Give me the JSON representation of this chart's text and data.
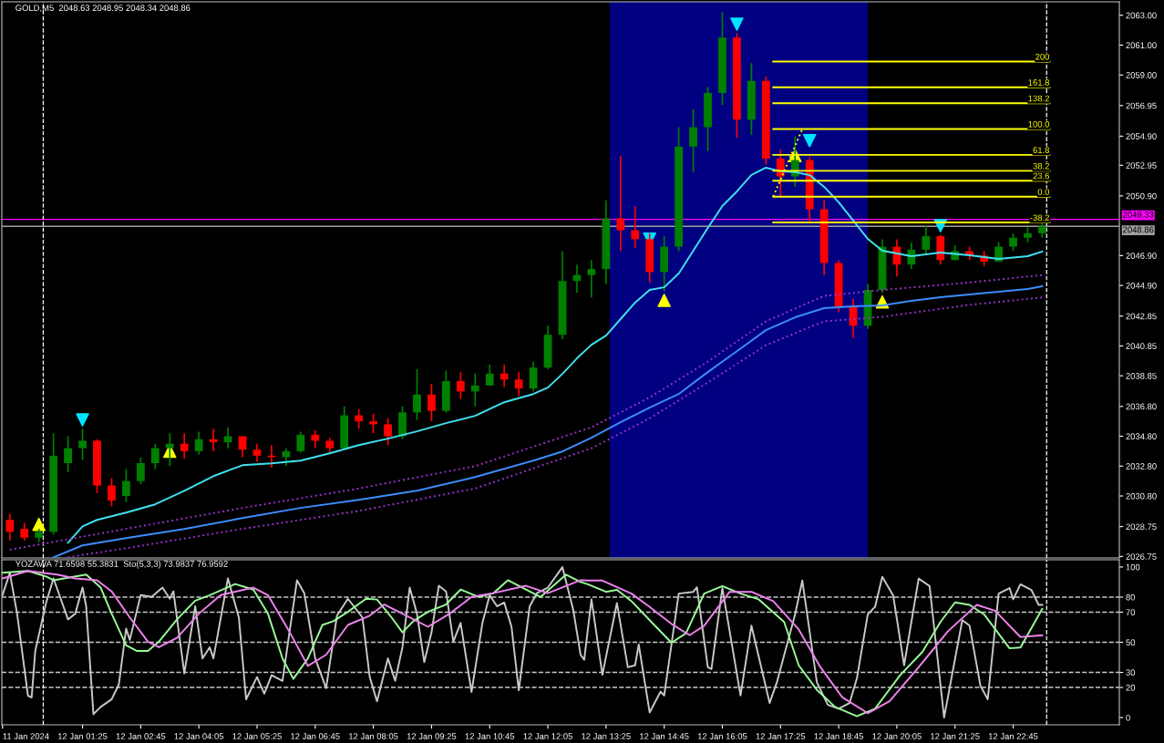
{
  "chart_data": [
    {
      "type": "candlestick",
      "title": "GOLD,M5  2048.63 2048.95 2048.34 2048.86",
      "x": [
        "2024-01-11T23:45",
        "2024-01-12T00:05",
        "2024-01-12T00:25",
        "2024-01-12T00:45",
        "2024-01-12T01:05",
        "2024-01-12T01:25",
        "2024-01-12T01:45",
        "2024-01-12T02:05",
        "2024-01-12T02:25",
        "2024-01-12T02:45",
        "2024-01-12T03:05",
        "2024-01-12T03:25",
        "2024-01-12T03:45",
        "2024-01-12T04:05",
        "2024-01-12T04:25",
        "2024-01-12T04:45",
        "2024-01-12T05:05",
        "2024-01-12T05:25",
        "2024-01-12T05:45",
        "2024-01-12T06:05",
        "2024-01-12T06:25",
        "2024-01-12T06:45",
        "2024-01-12T07:05",
        "2024-01-12T07:25",
        "2024-01-12T07:45",
        "2024-01-12T08:05",
        "2024-01-12T08:25",
        "2024-01-12T08:45",
        "2024-01-12T09:05",
        "2024-01-12T09:25",
        "2024-01-12T09:45",
        "2024-01-12T10:05",
        "2024-01-12T10:25",
        "2024-01-12T10:45",
        "2024-01-12T11:05",
        "2024-01-12T11:25",
        "2024-01-12T11:45",
        "2024-01-12T12:05",
        "2024-01-12T12:25",
        "2024-01-12T12:45",
        "2024-01-12T13:05",
        "2024-01-12T13:25",
        "2024-01-12T13:45",
        "2024-01-12T14:05",
        "2024-01-12T14:25",
        "2024-01-12T14:45",
        "2024-01-12T15:05",
        "2024-01-12T15:25",
        "2024-01-12T15:45",
        "2024-01-12T16:05",
        "2024-01-12T16:25",
        "2024-01-12T16:45",
        "2024-01-12T17:05",
        "2024-01-12T17:25",
        "2024-01-12T17:45",
        "2024-01-12T18:05",
        "2024-01-12T18:25",
        "2024-01-12T18:45",
        "2024-01-12T19:05",
        "2024-01-12T19:25",
        "2024-01-12T19:45",
        "2024-01-12T20:05",
        "2024-01-12T20:25",
        "2024-01-12T20:45",
        "2024-01-12T21:05",
        "2024-01-12T21:25",
        "2024-01-12T21:45",
        "2024-01-12T22:05",
        "2024-01-12T22:25",
        "2024-01-12T22:45",
        "2024-01-12T23:05",
        "2024-01-12T23:25"
      ],
      "ohlc": [
        [
          2029.2,
          2029.6,
          2027.8,
          2028.4
        ],
        [
          2028.6,
          2029.0,
          2027.8,
          2028.0
        ],
        [
          2028.0,
          2028.6,
          2027.7,
          2028.4
        ],
        [
          2028.4,
          2035.0,
          2028.2,
          2033.5
        ],
        [
          2033.0,
          2034.8,
          2032.4,
          2034.0
        ],
        [
          2034.0,
          2035.3,
          2033.2,
          2034.5
        ],
        [
          2034.5,
          2034.6,
          2031.0,
          2031.5
        ],
        [
          2031.5,
          2032.0,
          2030.1,
          2030.5
        ],
        [
          2030.8,
          2032.6,
          2030.4,
          2031.8
        ],
        [
          2031.8,
          2033.4,
          2031.6,
          2033.0
        ],
        [
          2033.0,
          2034.3,
          2032.6,
          2034.0
        ],
        [
          2034.0,
          2035.0,
          2032.8,
          2034.3
        ],
        [
          2034.3,
          2035.0,
          2033.3,
          2033.8
        ],
        [
          2033.8,
          2035.1,
          2033.6,
          2034.6
        ],
        [
          2034.6,
          2035.3,
          2033.8,
          2034.4
        ],
        [
          2034.4,
          2035.4,
          2034.0,
          2034.8
        ],
        [
          2034.8,
          2034.8,
          2033.4,
          2033.9
        ],
        [
          2033.9,
          2034.3,
          2033.1,
          2033.5
        ],
        [
          2033.5,
          2034.2,
          2032.7,
          2033.4
        ],
        [
          2033.4,
          2034.0,
          2032.8,
          2033.8
        ],
        [
          2033.8,
          2035.1,
          2033.7,
          2034.9
        ],
        [
          2034.9,
          2035.2,
          2034.0,
          2034.5
        ],
        [
          2034.5,
          2034.7,
          2033.6,
          2034.0
        ],
        [
          2034.0,
          2036.8,
          2033.9,
          2036.2
        ],
        [
          2036.2,
          2036.6,
          2035.3,
          2035.8
        ],
        [
          2035.8,
          2036.3,
          2035.0,
          2035.6
        ],
        [
          2035.6,
          2036.0,
          2034.2,
          2034.8
        ],
        [
          2034.8,
          2036.8,
          2034.6,
          2036.4
        ],
        [
          2036.4,
          2039.3,
          2035.9,
          2037.6
        ],
        [
          2037.6,
          2038.3,
          2035.8,
          2036.5
        ],
        [
          2036.5,
          2039.2,
          2036.4,
          2038.5
        ],
        [
          2038.5,
          2039.1,
          2037.3,
          2037.8
        ],
        [
          2037.8,
          2039.0,
          2036.8,
          2038.2
        ],
        [
          2038.2,
          2039.6,
          2038.2,
          2039.0
        ],
        [
          2039.0,
          2039.6,
          2038.1,
          2038.6
        ],
        [
          2038.6,
          2039.1,
          2037.5,
          2038.0
        ],
        [
          2038.0,
          2039.8,
          2037.8,
          2039.4
        ],
        [
          2039.4,
          2042.2,
          2039.3,
          2041.6
        ],
        [
          2041.6,
          2047.2,
          2041.3,
          2045.2
        ],
        [
          2045.2,
          2046.3,
          2044.4,
          2045.6
        ],
        [
          2045.6,
          2046.6,
          2044.1,
          2046.0
        ],
        [
          2046.0,
          2050.6,
          2045.0,
          2049.4
        ],
        [
          2049.4,
          2053.6,
          2047.2,
          2048.6
        ],
        [
          2048.6,
          2050.2,
          2047.4,
          2048.0
        ],
        [
          2048.0,
          2048.4,
          2045.1,
          2045.8
        ],
        [
          2045.8,
          2048.2,
          2044.5,
          2047.5
        ],
        [
          2047.5,
          2055.5,
          2047.2,
          2054.2
        ],
        [
          2054.2,
          2056.7,
          2052.5,
          2055.5
        ],
        [
          2055.5,
          2058.2,
          2053.9,
          2057.8
        ],
        [
          2057.8,
          2063.2,
          2057.0,
          2061.5
        ],
        [
          2061.5,
          2061.8,
          2054.8,
          2056.0
        ],
        [
          2056.0,
          2059.8,
          2055.0,
          2058.6
        ],
        [
          2058.6,
          2058.9,
          2053.0,
          2053.4
        ],
        [
          2053.4,
          2054.0,
          2050.8,
          2052.2
        ],
        [
          2052.2,
          2054.9,
          2051.5,
          2053.3
        ],
        [
          2053.3,
          2053.5,
          2049.2,
          2050.0
        ],
        [
          2050.0,
          2050.6,
          2045.6,
          2046.4
        ],
        [
          2046.4,
          2046.6,
          2043.1,
          2043.5
        ],
        [
          2043.5,
          2044.0,
          2041.4,
          2042.2
        ],
        [
          2042.2,
          2045.0,
          2042.0,
          2044.6
        ],
        [
          2044.6,
          2048.0,
          2044.4,
          2047.5
        ],
        [
          2047.5,
          2048.0,
          2045.5,
          2046.3
        ],
        [
          2046.3,
          2047.8,
          2046.0,
          2047.3
        ],
        [
          2047.3,
          2048.9,
          2047.0,
          2048.2
        ],
        [
          2048.2,
          2048.3,
          2046.3,
          2046.6
        ],
        [
          2046.6,
          2047.6,
          2046.6,
          2047.2
        ],
        [
          2047.2,
          2047.5,
          2046.6,
          2046.9
        ],
        [
          2046.9,
          2047.2,
          2046.2,
          2046.5
        ],
        [
          2046.5,
          2047.8,
          2046.5,
          2047.5
        ],
        [
          2047.5,
          2048.4,
          2047.2,
          2048.1
        ],
        [
          2048.1,
          2048.8,
          2047.8,
          2048.4
        ],
        [
          2048.4,
          2049.2,
          2048.1,
          2048.86
        ]
      ],
      "series": [
        {
          "type": "line",
          "color": "#40e0f0",
          "x": [
            "2024-01-12T01:05",
            "2024-01-12T01:25",
            "2024-01-12T01:45",
            "2024-01-12T02:25",
            "2024-01-12T03:05",
            "2024-01-12T03:45",
            "2024-01-12T04:25",
            "2024-01-12T05:05",
            "2024-01-12T05:45",
            "2024-01-12T06:25",
            "2024-01-12T07:05",
            "2024-01-12T07:45",
            "2024-01-12T08:25",
            "2024-01-12T09:05",
            "2024-01-12T09:45",
            "2024-01-12T10:25",
            "2024-01-12T11:05",
            "2024-01-12T11:45",
            "2024-01-12T12:05",
            "2024-01-12T12:25",
            "2024-01-12T12:45",
            "2024-01-12T13:05",
            "2024-01-12T13:25",
            "2024-01-12T13:45",
            "2024-01-12T14:05",
            "2024-01-12T14:25",
            "2024-01-12T14:45",
            "2024-01-12T15:05",
            "2024-01-12T15:25",
            "2024-01-12T15:45",
            "2024-01-12T16:05",
            "2024-01-12T16:25",
            "2024-01-12T16:45",
            "2024-01-12T17:05",
            "2024-01-12T17:25",
            "2024-01-12T17:45",
            "2024-01-12T18:05",
            "2024-01-12T18:25",
            "2024-01-12T18:45",
            "2024-01-12T19:05",
            "2024-01-12T19:25",
            "2024-01-12T19:45",
            "2024-01-12T20:25",
            "2024-01-12T21:05",
            "2024-01-12T21:45",
            "2024-01-12T22:25",
            "2024-01-12T23:05",
            "2024-01-12T23:25"
          ],
          "values": [
            2027.67,
            2028.77,
            2029.2,
            2029.69,
            2030.24,
            2031.15,
            2032.13,
            2032.86,
            2032.99,
            2033.17,
            2033.66,
            2034.21,
            2034.64,
            2035.13,
            2035.68,
            2036.17,
            2037.08,
            2037.63,
            2038.06,
            2038.98,
            2040.02,
            2040.93,
            2041.54,
            2042.65,
            2043.75,
            2044.6,
            2044.78,
            2045.7,
            2047.23,
            2048.76,
            2050.22,
            2051.2,
            2052.3,
            2052.79,
            2052.55,
            2052.49,
            2052.3,
            2051.51,
            2050.47,
            2049.25,
            2048.02,
            2047.23,
            2046.86,
            2047.11,
            2046.92,
            2046.68,
            2046.86,
            2047.17
          ]
        },
        {
          "type": "line",
          "color": "#3c8cff",
          "x": [
            "2024-01-12T00:45",
            "2024-01-12T01:25",
            "2024-01-12T02:25",
            "2024-01-12T03:45",
            "2024-01-12T05:05",
            "2024-01-12T06:25",
            "2024-01-12T07:45",
            "2024-01-12T09:05",
            "2024-01-12T10:25",
            "2024-01-12T11:45",
            "2024-01-12T12:25",
            "2024-01-12T13:05",
            "2024-01-12T13:45",
            "2024-01-12T14:25",
            "2024-01-12T15:05",
            "2024-01-12T15:45",
            "2024-01-12T16:25",
            "2024-01-12T17:05",
            "2024-01-12T17:45",
            "2024-01-12T18:25",
            "2024-01-12T19:05",
            "2024-01-12T19:45",
            "2024-01-12T20:25",
            "2024-01-12T21:05",
            "2024-01-12T21:45",
            "2024-01-12T22:25",
            "2024-01-12T23:05",
            "2024-01-12T23:25"
          ],
          "values": [
            2026.69,
            2027.49,
            2027.98,
            2028.59,
            2029.32,
            2030.0,
            2030.54,
            2031.15,
            2032.07,
            2033.17,
            2033.78,
            2034.7,
            2035.74,
            2036.72,
            2037.63,
            2039.1,
            2040.5,
            2041.91,
            2042.77,
            2043.38,
            2043.5,
            2043.56,
            2043.87,
            2044.11,
            2044.3,
            2044.48,
            2044.66,
            2044.85
          ]
        },
        {
          "type": "line",
          "color": "#9932cc",
          "line_style": "dotted",
          "x": [
            "2024-01-11T23:45",
            "2024-01-12T02:25",
            "2024-01-12T05:05",
            "2024-01-12T07:45",
            "2024-01-12T10:25",
            "2024-01-12T13:05",
            "2024-01-12T14:25",
            "2024-01-12T15:45",
            "2024-01-12T17:05",
            "2024-01-12T18:25",
            "2024-01-12T19:45",
            "2024-01-12T21:45",
            "2024-01-12T23:25"
          ],
          "values": [
            2027.2,
            2028.6,
            2030.0,
            2031.3,
            2032.8,
            2035.4,
            2037.4,
            2039.8,
            2042.5,
            2044.2,
            2044.6,
            2045.1,
            2045.6
          ]
        },
        {
          "type": "line",
          "color": "#9932cc",
          "line_style": "dotted",
          "x": [
            "2024-01-12T01:05",
            "2024-01-12T02:25",
            "2024-01-12T05:05",
            "2024-01-12T07:45",
            "2024-01-12T10:25",
            "2024-01-12T13:05",
            "2024-01-12T14:25",
            "2024-01-12T15:45",
            "2024-01-12T17:05",
            "2024-01-12T18:25",
            "2024-01-12T19:45",
            "2024-01-12T21:45",
            "2024-01-12T23:25"
          ],
          "values": [
            2026.7,
            2027.3,
            2028.6,
            2029.8,
            2031.3,
            2034.0,
            2036.0,
            2038.4,
            2040.9,
            2042.5,
            2042.8,
            2043.6,
            2044.1
          ]
        },
        {
          "type": "line",
          "color": "#ffff00",
          "x": [
            "2024-01-12T17:15",
            "2024-01-12T23:35"
          ],
          "values": [
            2059.9,
            2059.9
          ]
        },
        {
          "type": "line",
          "color": "#ffff00",
          "x": [
            "2024-01-12T17:15",
            "2024-01-12T23:35"
          ],
          "values": [
            2058.18,
            2058.18
          ]
        },
        {
          "type": "line",
          "color": "#ffff00",
          "x": [
            "2024-01-12T17:15",
            "2024-01-12T23:35"
          ],
          "values": [
            2057.11,
            2057.11
          ]
        },
        {
          "type": "line",
          "color": "#ffff00",
          "x": [
            "2024-01-12T17:15",
            "2024-01-12T23:35"
          ],
          "values": [
            2055.38,
            2055.38
          ]
        },
        {
          "type": "line",
          "color": "#ffff00",
          "x": [
            "2024-01-12T17:15",
            "2024-01-12T23:35"
          ],
          "values": [
            2053.65,
            2053.65
          ]
        },
        {
          "type": "line",
          "color": "#ffff00",
          "x": [
            "2024-01-12T17:15",
            "2024-01-12T23:35"
          ],
          "values": [
            2052.58,
            2052.58
          ]
        },
        {
          "type": "line",
          "color": "#ffff00",
          "x": [
            "2024-01-12T17:15",
            "2024-01-12T23:35"
          ],
          "values": [
            2051.92,
            2051.92
          ]
        },
        {
          "type": "line",
          "color": "#ffff00",
          "x": [
            "2024-01-12T17:15",
            "2024-01-12T23:35"
          ],
          "values": [
            2050.85,
            2050.85
          ]
        },
        {
          "type": "line",
          "color": "#ffff00",
          "x": [
            "2024-01-12T17:15",
            "2024-01-12T23:35"
          ],
          "values": [
            2049.12,
            2049.12
          ]
        },
        {
          "type": "line",
          "color": "#ffff00",
          "line_style": "dotted",
          "x": [
            "2024-01-12T17:15",
            "2024-01-12T17:55"
          ],
          "values": [
            2050.85,
            2055.38
          ]
        },
        {
          "type": "scatter",
          "color": "#ffff00",
          "marker": "triangle",
          "x": [
            "2024-01-12T00:25",
            "2024-01-12T03:25",
            "2024-01-12T14:45",
            "2024-01-12T17:45",
            "2024-01-12T19:45"
          ],
          "values": [
            2028.9,
            2033.8,
            2043.9,
            2053.6,
            2043.8
          ]
        },
        {
          "type": "scatter",
          "color": "#00e5ff",
          "marker": "triangle_down",
          "x": [
            "2024-01-12T01:25",
            "2024-01-12T14:25",
            "2024-01-12T16:25",
            "2024-01-12T18:05",
            "2024-01-12T21:05"
          ],
          "values": [
            2035.9,
            2048.0,
            2062.4,
            2054.6,
            2048.9
          ]
        }
      ],
      "annotations": [
        {
          "text": "200",
          "x": "2024-01-12T23:35",
          "y": 2059.9
        },
        {
          "text": "161.8",
          "x": "2024-01-12T23:35",
          "y": 2058.18
        },
        {
          "text": "138.2",
          "x": "2024-01-12T23:35",
          "y": 2057.11
        },
        {
          "text": "100.0",
          "x": "2024-01-12T23:35",
          "y": 2055.38
        },
        {
          "text": "61.8",
          "x": "2024-01-12T23:35",
          "y": 2053.65
        },
        {
          "text": "38.2",
          "x": "2024-01-12T23:35",
          "y": 2052.58
        },
        {
          "text": "23.6",
          "x": "2024-01-12T23:35",
          "y": 2051.92
        },
        {
          "text": "0.0",
          "x": "2024-01-12T23:35",
          "y": 2050.85
        },
        {
          "text": "-38.2",
          "x": "2024-01-12T23:35",
          "y": 2049.12
        }
      ],
      "ref_lines": [
        {
          "axis": "y",
          "value": 2049.33,
          "label": "2049.33",
          "color": "#ff00ff"
        },
        {
          "axis": "y",
          "value": 2048.86,
          "label": "2048.86",
          "color": "#a0a0a0"
        },
        {
          "axis": "x",
          "value": "2024-01-12T00:31",
          "color": "#ffffff",
          "line_style": "dashed"
        },
        {
          "axis": "x",
          "value": "2024-01-12T23:31",
          "color": "#ffffff",
          "line_style": "dashed"
        }
      ],
      "bands": [
        {
          "axis": "x",
          "from": "2024-01-12T13:30",
          "to": "2024-01-12T19:25",
          "color": "#000080"
        }
      ],
      "xlim": [
        "2024-01-11T23:34",
        "2024-01-13T01:11"
      ],
      "ylim": [
        2026.65,
        2063.9
      ],
      "yticks": [
        2026.75,
        2028.75,
        {
          "value": 2030.8,
          "label": "2030.80"
        },
        {
          "value": 2032.8,
          "label": "2032.80"
        },
        {
          "value": 2034.8,
          "label": "2034.80"
        },
        {
          "value": 2036.8,
          "label": "2036.80"
        },
        2038.85,
        2040.85,
        2042.85,
        {
          "value": 2044.9,
          "label": "2044.90"
        },
        {
          "value": 2046.9,
          "label": "2046.90"
        },
        {
          "value": 2050.9,
          "label": "2050.90"
        },
        2052.95,
        {
          "value": 2054.9,
          "label": "2054.90"
        },
        2056.95,
        {
          "value": 2059.0,
          "label": "2059.00"
        },
        {
          "value": 2061.0,
          "label": "2061.00"
        },
        {
          "value": 2063.0,
          "label": "2063.00"
        }
      ],
      "tick_labels": "y"
    },
    {
      "type": "line",
      "title": "YOZAWA 71.6598 55.3831  Sto(5,3,3) 73.9837 76.9592",
      "series": [
        {
          "color": "#c8c8c8",
          "x": [
            "2024-01-11T23:35",
            "2024-01-11T23:45",
            "2024-01-11T23:55",
            "2024-01-12T00:10",
            "2024-01-12T00:15",
            "2024-01-12T00:20",
            "2024-01-12T00:35",
            "2024-01-12T00:45",
            "2024-01-12T00:55",
            "2024-01-12T01:05",
            "2024-01-12T01:15",
            "2024-01-12T01:25",
            "2024-01-12T01:30",
            "2024-01-12T01:40",
            "2024-01-12T01:50",
            "2024-01-12T02:05",
            "2024-01-12T02:15",
            "2024-01-12T02:25",
            "2024-01-12T02:30",
            "2024-01-12T02:45",
            "2024-01-12T03:00",
            "2024-01-12T03:15",
            "2024-01-12T03:25",
            "2024-01-12T03:30",
            "2024-01-12T03:45",
            "2024-01-12T04:00",
            "2024-01-12T04:10",
            "2024-01-12T04:20",
            "2024-01-12T04:25",
            "2024-01-12T04:45",
            "2024-01-12T05:00",
            "2024-01-12T05:10",
            "2024-01-12T05:25",
            "2024-01-12T05:35",
            "2024-01-12T05:45",
            "2024-01-12T06:00",
            "2024-01-12T06:20",
            "2024-01-12T06:30",
            "2024-01-12T06:45",
            "2024-01-12T07:00",
            "2024-01-12T07:15",
            "2024-01-12T07:30",
            "2024-01-12T07:40",
            "2024-01-12T07:50",
            "2024-01-12T08:00",
            "2024-01-12T08:10",
            "2024-01-12T08:25",
            "2024-01-12T08:35",
            "2024-01-12T08:45",
            "2024-01-12T08:55",
            "2024-01-12T09:05",
            "2024-01-12T09:15",
            "2024-01-12T09:25",
            "2024-01-12T09:35",
            "2024-01-12T09:45",
            "2024-01-12T09:55",
            "2024-01-12T10:05",
            "2024-01-12T10:20",
            "2024-01-12T10:35",
            "2024-01-12T10:45",
            "2024-01-12T10:55",
            "2024-01-12T11:05",
            "2024-01-12T11:15",
            "2024-01-12T11:25",
            "2024-01-12T11:40",
            "2024-01-12T11:50",
            "2024-01-12T12:05",
            "2024-01-12T12:25",
            "2024-01-12T12:40",
            "2024-01-12T12:50",
            "2024-01-12T12:55",
            "2024-01-12T13:05",
            "2024-01-12T13:20",
            "2024-01-12T13:40",
            "2024-01-12T13:55",
            "2024-01-12T14:05",
            "2024-01-12T14:10",
            "2024-01-12T14:25",
            "2024-01-12T14:40",
            "2024-01-12T14:45",
            "2024-01-12T15:05",
            "2024-01-12T15:25",
            "2024-01-12T15:30",
            "2024-01-12T15:45",
            "2024-01-12T15:50",
            "2024-01-12T16:05",
            "2024-01-12T16:30",
            "2024-01-12T16:45",
            "2024-01-12T17:10",
            "2024-01-12T17:20",
            "2024-01-12T17:45",
            "2024-01-12T17:55",
            "2024-01-12T18:15",
            "2024-01-12T18:30",
            "2024-01-12T18:45",
            "2024-01-12T19:00",
            "2024-01-12T19:10",
            "2024-01-12T19:25",
            "2024-01-12T19:35",
            "2024-01-12T19:45",
            "2024-01-12T20:00",
            "2024-01-12T20:15",
            "2024-01-12T20:35",
            "2024-01-12T20:50",
            "2024-01-12T21:10",
            "2024-01-12T21:35",
            "2024-01-12T21:45",
            "2024-01-12T22:00",
            "2024-01-12T22:10",
            "2024-01-12T22:25",
            "2024-01-12T22:40",
            "2024-01-12T22:45",
            "2024-01-12T22:55",
            "2024-01-12T23:10",
            "2024-01-12T23:20",
            "2024-01-12T23:25"
          ],
          "values": [
            81.3,
            96.2,
            69.0,
            14.5,
            13.3,
            44.2,
            76.4,
            92.4,
            78.9,
            65.2,
            69.0,
            86.3,
            73.9,
            2.2,
            7.1,
            12.1,
            22.0,
            59.1,
            51.6,
            81.3,
            80.1,
            86.3,
            78.9,
            83.8,
            29.4,
            73.9,
            39.3,
            46.7,
            39.3,
            92.4,
            66.5,
            12.1,
            26.9,
            15.8,
            28.1,
            24.4,
            91.2,
            82.6,
            39.3,
            19.5,
            67.7,
            78.9,
            72.7,
            66.5,
            26.9,
            10.8,
            39.3,
            24.4,
            46.7,
            86.3,
            69.0,
            36.8,
            56.6,
            87.5,
            83.8,
            50.4,
            62.8,
            17.0,
            62.8,
            81.3,
            73.9,
            76.4,
            60.3,
            18.2,
            73.9,
            82.6,
            86.3,
            99.9,
            71.4,
            41.7,
            38.4,
            78.5,
            28.4,
            76.0,
            33.4,
            34.7,
            48.5,
            3.4,
            17.2,
            14.6,
            82.3,
            83.5,
            86.5,
            33.4,
            32.2,
            86.0,
            14.6,
            61.0,
            9.7,
            23.4,
            68.5,
            91.0,
            23.4,
            8.4,
            5.9,
            9.7,
            25.9,
            68.5,
            73.5,
            93.5,
            81.0,
            34.7,
            92.3,
            87.3,
            0,
            64.7,
            61.0,
            21.0,
            12.2,
            82.3,
            86.0,
            78.5,
            88.5,
            84.8,
            74.8,
            74.8
          ]
        },
        {
          "color": "#98fb98",
          "x": [
            "2024-01-11T23:35",
            "2024-01-12T00:10",
            "2024-01-12T00:35",
            "2024-01-12T00:45",
            "2024-01-12T01:30",
            "2024-01-12T01:50",
            "2024-01-12T02:05",
            "2024-01-12T02:25",
            "2024-01-12T02:40",
            "2024-01-12T02:55",
            "2024-01-12T03:10",
            "2024-01-12T03:35",
            "2024-01-12T04:00",
            "2024-01-12T04:20",
            "2024-01-12T04:55",
            "2024-01-12T05:20",
            "2024-01-12T05:40",
            "2024-01-12T06:00",
            "2024-01-12T06:15",
            "2024-01-12T06:35",
            "2024-01-12T06:55",
            "2024-01-12T07:10",
            "2024-01-12T07:30",
            "2024-01-12T07:55",
            "2024-01-12T08:10",
            "2024-01-12T08:30",
            "2024-01-12T08:45",
            "2024-01-12T09:00",
            "2024-01-12T09:20",
            "2024-01-12T09:45",
            "2024-01-12T10:05",
            "2024-01-12T10:30",
            "2024-01-12T10:50",
            "2024-01-12T11:10",
            "2024-01-12T11:30",
            "2024-01-12T11:55",
            "2024-01-12T12:30",
            "2024-01-12T12:50",
            "2024-01-12T13:00",
            "2024-01-12T13:25",
            "2024-01-12T13:40",
            "2024-01-12T14:00",
            "2024-01-12T14:25",
            "2024-01-12T14:55",
            "2024-01-12T15:15",
            "2024-01-12T15:40",
            "2024-01-12T16:05",
            "2024-01-12T16:30",
            "2024-01-12T16:55",
            "2024-01-12T17:30",
            "2024-01-12T17:50",
            "2024-01-12T18:15",
            "2024-01-12T18:40",
            "2024-01-12T19:10",
            "2024-01-12T19:35",
            "2024-01-12T20:10",
            "2024-01-12T20:40",
            "2024-01-12T21:05",
            "2024-01-12T21:25",
            "2024-01-12T21:45",
            "2024-01-12T22:05",
            "2024-01-12T22:40",
            "2024-01-12T22:55",
            "2024-01-12T23:25"
          ],
          "values": [
            96.2,
            97.4,
            93.7,
            91.2,
            95.0,
            86.3,
            69.0,
            47.9,
            44.2,
            44.2,
            50.4,
            65.2,
            77.6,
            81.3,
            88.7,
            85.0,
            69.0,
            39.3,
            25.7,
            39.3,
            61.5,
            64.0,
            70.2,
            78.9,
            78.4,
            66.5,
            56.6,
            64.0,
            70.2,
            75.1,
            85.0,
            80.1,
            82.6,
            91.2,
            86.3,
            80.1,
            94.9,
            90.0,
            88.5,
            83.5,
            84.8,
            77.3,
            64.7,
            49.7,
            56.0,
            82.3,
            87.3,
            82.3,
            78.5,
            63.5,
            34.7,
            18.4,
            7.1,
            0.9,
            5.9,
            28.4,
            43.5,
            63.5,
            76.5,
            74.8,
            68.5,
            46.0,
            46.5,
            72.2
          ]
        },
        {
          "color": "#ee82ee",
          "x": [
            "2024-01-11T23:35",
            "2024-01-12T00:10",
            "2024-01-12T00:50",
            "2024-01-12T01:15",
            "2024-01-12T01:45",
            "2024-01-12T02:05",
            "2024-01-12T02:30",
            "2024-01-12T02:55",
            "2024-01-12T03:10",
            "2024-01-12T03:35",
            "2024-01-12T04:05",
            "2024-01-12T04:35",
            "2024-01-12T05:20",
            "2024-01-12T05:40",
            "2024-01-12T06:10",
            "2024-01-12T06:35",
            "2024-01-12T07:00",
            "2024-01-12T07:30",
            "2024-01-12T08:00",
            "2024-01-12T08:20",
            "2024-01-12T08:45",
            "2024-01-12T09:20",
            "2024-01-12T09:50",
            "2024-01-12T10:20",
            "2024-01-12T10:50",
            "2024-01-12T11:35",
            "2024-01-12T12:05",
            "2024-01-12T12:50",
            "2024-01-12T13:00",
            "2024-01-12T13:20",
            "2024-01-12T14:00",
            "2024-01-12T14:25",
            "2024-01-12T14:55",
            "2024-01-12T15:20",
            "2024-01-12T15:40",
            "2024-01-12T16:15",
            "2024-01-12T16:45",
            "2024-01-12T17:15",
            "2024-01-12T17:50",
            "2024-01-12T18:20",
            "2024-01-12T18:50",
            "2024-01-12T19:25",
            "2024-01-12T19:55",
            "2024-01-12T20:35",
            "2024-01-12T21:15",
            "2024-01-12T21:55",
            "2024-01-12T22:20",
            "2024-01-12T22:55",
            "2024-01-12T23:25"
          ],
          "values": [
            92.4,
            97.4,
            95.0,
            92.4,
            91.2,
            83.8,
            66.5,
            50.4,
            46.7,
            52.9,
            69.0,
            81.3,
            86.3,
            81.3,
            56.6,
            34.3,
            41.7,
            61.5,
            67.7,
            75.1,
            69.0,
            60.3,
            69.0,
            80.1,
            82.6,
            87.5,
            82.6,
            91.2,
            91.0,
            91.0,
            82.3,
            73.5,
            62.2,
            54.7,
            61.0,
            83.5,
            83.5,
            77.3,
            58.5,
            33.4,
            13.4,
            2.9,
            10.9,
            33.4,
            57.2,
            74.8,
            71.0,
            53.5,
            54.7
          ]
        }
      ],
      "ref_lines": [
        {
          "axis": "y",
          "value": 20,
          "color": "#c8c8c8",
          "line_style": "dashed"
        },
        {
          "axis": "y",
          "value": 30,
          "color": "#c8c8c8",
          "line_style": "dashed"
        },
        {
          "axis": "y",
          "value": 50,
          "color": "#c8c8c8",
          "line_style": "dashed"
        },
        {
          "axis": "y",
          "value": 70,
          "color": "#c8c8c8",
          "line_style": "dashed"
        },
        {
          "axis": "y",
          "value": 80,
          "color": "#c8c8c8",
          "line_style": "dashed"
        },
        {
          "axis": "x",
          "value": "2024-01-12T00:31",
          "color": "#ffffff",
          "line_style": "dashed"
        },
        {
          "axis": "x",
          "value": "2024-01-12T23:31",
          "color": "#ffffff",
          "line_style": "dashed"
        }
      ],
      "xlim": [
        "2024-01-11T23:34",
        "2024-01-13T01:11"
      ],
      "ylim": [
        -4.8,
        104.8
      ],
      "xticks": [
        {
          "value": "2024-01-11T23:35",
          "label": "11 Jan 2024"
        },
        {
          "value": "2024-01-12T01:25",
          "label": "12 Jan 01:25"
        },
        {
          "value": "2024-01-12T02:45",
          "label": "12 Jan 02:45"
        },
        {
          "value": "2024-01-12T04:05",
          "label": "12 Jan 04:05"
        },
        {
          "value": "2024-01-12T05:25",
          "label": "12 Jan 05:25"
        },
        {
          "value": "2024-01-12T06:45",
          "label": "12 Jan 06:45"
        },
        {
          "value": "2024-01-12T08:05",
          "label": "12 Jan 08:05"
        },
        {
          "value": "2024-01-12T09:25",
          "label": "12 Jan 09:25"
        },
        {
          "value": "2024-01-12T10:45",
          "label": "12 Jan 10:45"
        },
        {
          "value": "2024-01-12T12:05",
          "label": "12 Jan 12:05"
        },
        {
          "value": "2024-01-12T13:25",
          "label": "12 Jan 13:25"
        },
        {
          "value": "2024-01-12T14:45",
          "label": "12 Jan 14:45"
        },
        {
          "value": "2024-01-12T16:05",
          "label": "12 Jan 16:05"
        },
        {
          "value": "2024-01-12T17:25",
          "label": "12 Jan 17:25"
        },
        {
          "value": "2024-01-12T18:45",
          "label": "12 Jan 18:45"
        },
        {
          "value": "2024-01-12T20:05",
          "label": "12 Jan 20:05"
        },
        {
          "value": "2024-01-12T21:25",
          "label": "12 Jan 21:25"
        },
        {
          "value": "2024-01-12T22:45",
          "label": "12 Jan 22:45"
        }
      ],
      "yticks": [
        0,
        20,
        30,
        50,
        70,
        80,
        100
      ]
    }
  ]
}
